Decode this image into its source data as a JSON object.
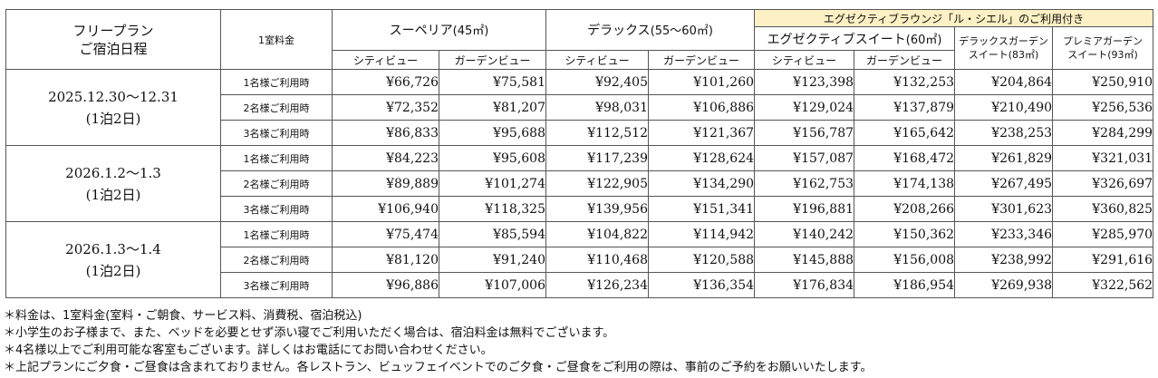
{
  "header": {
    "plan_line1": "フリープラン",
    "plan_line2": "ご宿泊日程",
    "base_price": "1室料金",
    "executive_banner": "エグゼクティブラウンジ「ル・シエル」のご利用付き",
    "rooms": [
      {
        "name": "スーペリア",
        "size": "(45㎡)"
      },
      {
        "name": "デラックス",
        "size": "(55〜60㎡)"
      },
      {
        "name": "エグゼクティブスイート",
        "size": "(60㎡)"
      }
    ],
    "suites": [
      {
        "line1": "デラックスガーデン",
        "line2": "スイート",
        "size": "(83㎡)"
      },
      {
        "line1": "プレミアガーデン",
        "line2": "スイート",
        "size": "(93㎡)"
      }
    ],
    "views": [
      "シティビュー",
      "ガーデンビュー",
      "シティビュー",
      "ガーデンビュー",
      "シティビュー",
      "ガーデンビュー"
    ]
  },
  "occupancy": [
    "1名様ご利用時",
    "2名様ご利用時",
    "3名様ご利用時"
  ],
  "periods": [
    {
      "date": "2025.12.30〜12.31",
      "nights": "(1泊2日)",
      "rows": [
        [
          "¥66,726",
          "¥75,581",
          "¥92,405",
          "¥101,260",
          "¥123,398",
          "¥132,253",
          "¥204,864",
          "¥250,910"
        ],
        [
          "¥72,352",
          "¥81,207",
          "¥98,031",
          "¥106,886",
          "¥129,024",
          "¥137,879",
          "¥210,490",
          "¥256,536"
        ],
        [
          "¥86,833",
          "¥95,688",
          "¥112,512",
          "¥121,367",
          "¥156,787",
          "¥165,642",
          "¥238,253",
          "¥284,299"
        ]
      ]
    },
    {
      "date": "2026.1.2〜1.3",
      "nights": "(1泊2日)",
      "rows": [
        [
          "¥84,223",
          "¥95,608",
          "¥117,239",
          "¥128,624",
          "¥157,087",
          "¥168,472",
          "¥261,829",
          "¥321,031"
        ],
        [
          "¥89,889",
          "¥101,274",
          "¥122,905",
          "¥134,290",
          "¥162,753",
          "¥174,138",
          "¥267,495",
          "¥326,697"
        ],
        [
          "¥106,940",
          "¥118,325",
          "¥139,956",
          "¥151,341",
          "¥196,881",
          "¥208,266",
          "¥301,623",
          "¥360,825"
        ]
      ]
    },
    {
      "date": "2026.1.3〜1.4",
      "nights": "(1泊2日)",
      "rows": [
        [
          "¥75,474",
          "¥85,594",
          "¥104,822",
          "¥114,942",
          "¥140,242",
          "¥150,362",
          "¥233,346",
          "¥285,970"
        ],
        [
          "¥81,120",
          "¥91,240",
          "¥110,468",
          "¥120,588",
          "¥145,888",
          "¥156,008",
          "¥238,992",
          "¥291,616"
        ],
        [
          "¥96,886",
          "¥107,006",
          "¥126,234",
          "¥136,354",
          "¥176,834",
          "¥186,954",
          "¥269,938",
          "¥322,562"
        ]
      ]
    }
  ],
  "notes": [
    "＊料金は、1室料金(室料・ご朝食、サービス料、消費税、宿泊税込)",
    "＊小学生のお子様まで、また、ベッドを必要とせず添い寝でご利用いただく場合は、宿泊料金は無料でございます。",
    "＊4名様以上でご利用可能な客室もございます。詳しくはお電話にてお問い合わせください。",
    "＊上記プランにご夕食・ご昼食は含まれておりません。各レストラン、ビュッフェイベントでのご夕食・ご昼食をご利用の際は、事前のご予約をお願いいたします。"
  ]
}
